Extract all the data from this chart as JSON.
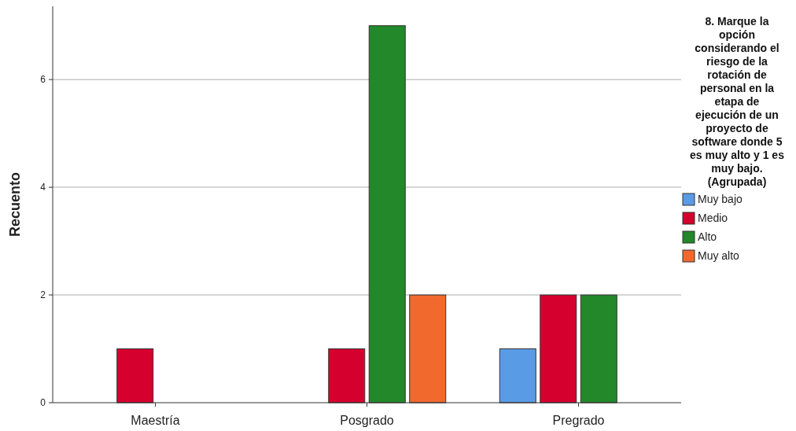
{
  "chart_data": {
    "type": "bar",
    "ylabel": "Recuento",
    "legend_title": "8. Marque la opción considerando el riesgo de la rotación de personal en la etapa de ejecución de un proyecto de software donde 5 es muy alto y 1 es muy bajo. (Agrupada)",
    "categories": [
      "Maestría",
      "Posgrado",
      "Pregrado"
    ],
    "series": [
      {
        "name": "Muy bajo",
        "color": "#5a9be6",
        "values": [
          null,
          null,
          1
        ]
      },
      {
        "name": "Medio",
        "color": "#d6002e",
        "values": [
          1,
          1,
          2
        ]
      },
      {
        "name": "Alto",
        "color": "#22882a",
        "values": [
          null,
          7,
          2
        ]
      },
      {
        "name": "Muy alto",
        "color": "#f2692e",
        "values": [
          null,
          2,
          null
        ]
      }
    ],
    "ylim": [
      0,
      7.36
    ],
    "yticks": [
      0,
      2,
      4,
      6
    ],
    "grid": "y",
    "legend": "right"
  }
}
